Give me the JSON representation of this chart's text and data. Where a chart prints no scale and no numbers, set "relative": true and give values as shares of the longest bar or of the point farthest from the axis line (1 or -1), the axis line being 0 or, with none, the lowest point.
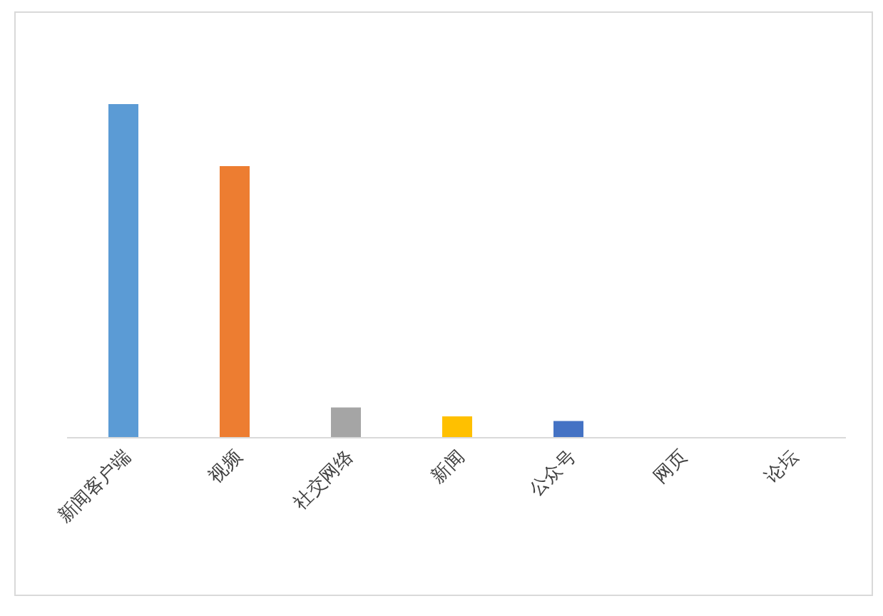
{
  "chart_data": {
    "type": "bar",
    "relative": true,
    "categories": [
      "新闻客户端",
      "视频",
      "社交网络",
      "新闻",
      "公众号",
      "网页",
      "论坛"
    ],
    "values": [
      1,
      0.814,
      0.091,
      0.064,
      0.05,
      0,
      0
    ],
    "colors": [
      "#5b9bd5",
      "#ed7d31",
      "#a5a5a5",
      "#ffc000",
      "#4472c4",
      "#70ad47",
      "#264478"
    ],
    "grid": false,
    "legend": false
  }
}
